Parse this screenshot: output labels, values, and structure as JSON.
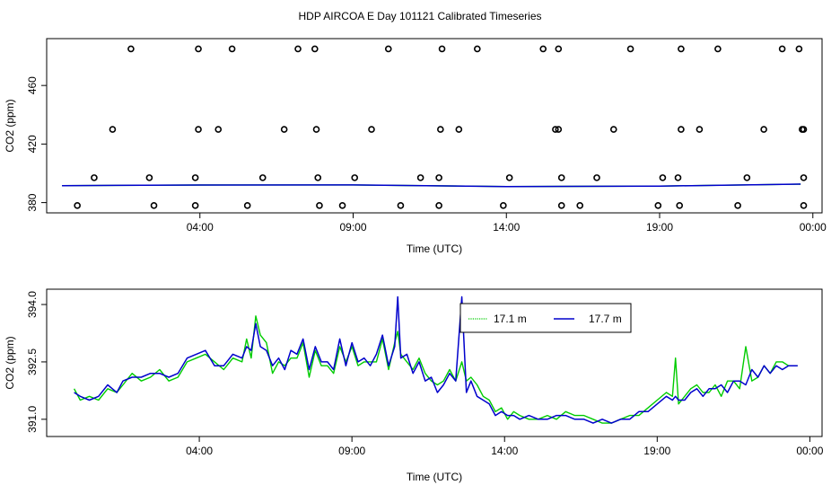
{
  "title": "HDP AIRCOA E  Day 101121  Calibrated Timeseries",
  "colors": {
    "s1": "#00cc00",
    "s2": "#0000cc",
    "axis": "#000000"
  },
  "chart_data": [
    {
      "type": "scatter+line",
      "xlabel": "Time (UTC)",
      "ylabel": "CO2 (ppm)",
      "xlim": [
        -1.0,
        24.3
      ],
      "ylim": [
        373,
        492
      ],
      "xticks": [
        {
          "v": 4,
          "label": "04:00"
        },
        {
          "v": 9,
          "label": "09:00"
        },
        {
          "v": 14,
          "label": "14:00"
        },
        {
          "v": 19,
          "label": "19:00"
        },
        {
          "v": 24,
          "label": "00:00"
        }
      ],
      "yticks": [
        {
          "v": 380,
          "label": "380"
        },
        {
          "v": 420,
          "label": "420"
        },
        {
          "v": 460,
          "label": "460"
        }
      ],
      "legend": "none",
      "calibration_points": [
        [
          1.75,
          485
        ],
        [
          3.95,
          485
        ],
        [
          5.05,
          485
        ],
        [
          7.2,
          485
        ],
        [
          7.75,
          485
        ],
        [
          10.15,
          485
        ],
        [
          11.9,
          485
        ],
        [
          13.05,
          485
        ],
        [
          15.2,
          485
        ],
        [
          15.7,
          485
        ],
        [
          18.05,
          485
        ],
        [
          19.7,
          485
        ],
        [
          20.9,
          485
        ],
        [
          23.0,
          485
        ],
        [
          23.55,
          485
        ],
        [
          1.15,
          430
        ],
        [
          3.95,
          430
        ],
        [
          4.6,
          430
        ],
        [
          6.75,
          430
        ],
        [
          7.8,
          430
        ],
        [
          9.6,
          430
        ],
        [
          11.85,
          430
        ],
        [
          12.45,
          430
        ],
        [
          15.6,
          430
        ],
        [
          15.7,
          430
        ],
        [
          17.5,
          430
        ],
        [
          19.7,
          430
        ],
        [
          20.3,
          430
        ],
        [
          22.4,
          430
        ],
        [
          23.7,
          430
        ],
        [
          23.65,
          430
        ],
        [
          0.55,
          397
        ],
        [
          2.35,
          397
        ],
        [
          3.85,
          397
        ],
        [
          6.05,
          397
        ],
        [
          7.85,
          397
        ],
        [
          9.05,
          397
        ],
        [
          11.2,
          397
        ],
        [
          11.8,
          397
        ],
        [
          14.1,
          397
        ],
        [
          15.8,
          397
        ],
        [
          16.95,
          397
        ],
        [
          19.1,
          397
        ],
        [
          19.6,
          397
        ],
        [
          21.85,
          397
        ],
        [
          23.7,
          397
        ],
        [
          0.0,
          378
        ],
        [
          2.5,
          378
        ],
        [
          3.85,
          378
        ],
        [
          5.55,
          378
        ],
        [
          7.9,
          378
        ],
        [
          8.65,
          378
        ],
        [
          10.55,
          378
        ],
        [
          11.8,
          378
        ],
        [
          13.9,
          378
        ],
        [
          15.8,
          378
        ],
        [
          16.4,
          378
        ],
        [
          18.95,
          378
        ],
        [
          19.65,
          378
        ],
        [
          21.55,
          378
        ],
        [
          23.7,
          378
        ]
      ],
      "series": [
        {
          "name": "17.1 m",
          "x": [
            -0.5,
            4,
            9,
            14,
            19,
            23.6
          ],
          "y": [
            391.6,
            392.0,
            392.1,
            391.0,
            391.3,
            392.6
          ]
        },
        {
          "name": "17.7 m",
          "x": [
            -0.5,
            4,
            9,
            14,
            19,
            23.6
          ],
          "y": [
            391.6,
            392.0,
            392.1,
            391.0,
            391.3,
            392.6
          ]
        }
      ]
    },
    {
      "type": "line",
      "xlabel": "Time (UTC)",
      "ylabel": "CO2 (ppm)",
      "xlim": [
        -1.0,
        24.4
      ],
      "ylim": [
        390.55,
        394.4
      ],
      "xticks": [
        {
          "v": 4,
          "label": "04:00"
        },
        {
          "v": 9,
          "label": "09:00"
        },
        {
          "v": 14,
          "label": "14:00"
        },
        {
          "v": 19,
          "label": "19:00"
        },
        {
          "v": 24,
          "label": "00:00"
        }
      ],
      "yticks": [
        {
          "v": 391.0,
          "label": "391.0"
        },
        {
          "v": 392.5,
          "label": "392.5"
        },
        {
          "v": 394.0,
          "label": "394.0"
        }
      ],
      "legend": "top-center",
      "series": [
        {
          "name": "17.1 m",
          "color": "#00cc00",
          "x": [
            -0.1,
            0.1,
            0.4,
            0.7,
            1.0,
            1.3,
            1.5,
            1.8,
            2.1,
            2.4,
            2.7,
            3.0,
            3.3,
            3.6,
            3.9,
            4.2,
            4.5,
            4.8,
            5.1,
            5.4,
            5.55,
            5.7,
            5.85,
            6.0,
            6.2,
            6.4,
            6.6,
            6.8,
            7.0,
            7.2,
            7.4,
            7.6,
            7.8,
            8.0,
            8.2,
            8.4,
            8.6,
            8.8,
            9.0,
            9.2,
            9.4,
            9.6,
            9.8,
            10.0,
            10.2,
            10.4,
            10.5,
            10.6,
            10.8,
            11.0,
            11.2,
            11.4,
            11.6,
            11.8,
            12.0,
            12.2,
            12.4,
            12.6,
            12.75,
            12.9,
            13.1,
            13.3,
            13.5,
            13.7,
            13.9,
            14.1,
            14.3,
            14.5,
            14.8,
            15.1,
            15.4,
            15.7,
            16.0,
            16.3,
            16.6,
            16.9,
            17.2,
            17.5,
            17.8,
            18.1,
            18.4,
            18.7,
            19.0,
            19.3,
            19.5,
            19.6,
            19.7,
            19.9,
            20.1,
            20.3,
            20.5,
            20.7,
            20.9,
            21.1,
            21.3,
            21.5,
            21.7,
            21.9,
            22.1,
            22.3,
            22.5,
            22.7,
            22.9,
            23.1,
            23.3,
            23.6
          ],
          "y": [
            391.8,
            391.5,
            391.6,
            391.5,
            391.8,
            391.7,
            391.9,
            392.2,
            392.0,
            392.1,
            392.3,
            392.0,
            392.1,
            392.5,
            392.6,
            392.7,
            392.5,
            392.3,
            392.6,
            392.5,
            393.1,
            392.6,
            393.7,
            393.2,
            393.0,
            392.2,
            392.5,
            392.4,
            392.6,
            392.6,
            393.0,
            392.1,
            392.8,
            392.4,
            392.4,
            392.2,
            392.9,
            392.5,
            392.9,
            392.4,
            392.5,
            392.5,
            392.5,
            393.1,
            392.3,
            393.0,
            393.3,
            392.7,
            392.5,
            392.3,
            392.6,
            392.2,
            392.0,
            391.9,
            392.0,
            392.3,
            392.0,
            392.5,
            392.0,
            392.1,
            391.9,
            391.6,
            391.5,
            391.2,
            391.3,
            391.0,
            391.2,
            391.1,
            391.0,
            391.0,
            391.1,
            391.0,
            391.2,
            391.1,
            391.1,
            391.0,
            390.9,
            390.9,
            391.0,
            391.1,
            391.1,
            391.3,
            391.5,
            391.7,
            391.6,
            392.6,
            391.4,
            391.6,
            391.8,
            391.9,
            391.7,
            391.7,
            391.9,
            391.6,
            392.0,
            392.0,
            391.8,
            392.9,
            392.0,
            392.1,
            392.4,
            392.2,
            392.5,
            392.5,
            392.4,
            392.4
          ]
        },
        {
          "name": "17.7 m",
          "color": "#0000cc",
          "x": [
            -0.1,
            0.1,
            0.4,
            0.7,
            1.0,
            1.3,
            1.5,
            1.8,
            2.1,
            2.4,
            2.7,
            3.0,
            3.3,
            3.6,
            3.9,
            4.2,
            4.5,
            4.8,
            5.1,
            5.4,
            5.55,
            5.7,
            5.85,
            6.0,
            6.2,
            6.4,
            6.6,
            6.8,
            7.0,
            7.2,
            7.4,
            7.6,
            7.8,
            8.0,
            8.2,
            8.4,
            8.6,
            8.8,
            9.0,
            9.2,
            9.4,
            9.6,
            9.8,
            10.0,
            10.2,
            10.4,
            10.5,
            10.6,
            10.8,
            11.0,
            11.2,
            11.4,
            11.6,
            11.8,
            12.0,
            12.2,
            12.4,
            12.6,
            12.75,
            12.9,
            13.1,
            13.3,
            13.5,
            13.7,
            13.9,
            14.1,
            14.3,
            14.5,
            14.8,
            15.1,
            15.4,
            15.7,
            16.0,
            16.3,
            16.6,
            16.9,
            17.2,
            17.5,
            17.8,
            18.1,
            18.4,
            18.7,
            19.0,
            19.3,
            19.5,
            19.6,
            19.7,
            19.9,
            20.1,
            20.3,
            20.5,
            20.7,
            20.9,
            21.1,
            21.3,
            21.5,
            21.7,
            21.9,
            22.1,
            22.3,
            22.5,
            22.7,
            22.9,
            23.1,
            23.3,
            23.6
          ],
          "y": [
            391.7,
            391.6,
            391.5,
            391.6,
            391.9,
            391.7,
            392.0,
            392.1,
            392.1,
            392.2,
            392.2,
            392.1,
            392.2,
            392.6,
            392.7,
            392.8,
            392.4,
            392.4,
            392.7,
            392.6,
            392.9,
            392.8,
            393.5,
            392.9,
            392.8,
            392.4,
            392.6,
            392.3,
            392.8,
            392.7,
            393.1,
            392.3,
            392.9,
            392.5,
            392.5,
            392.3,
            393.1,
            392.4,
            393.0,
            392.5,
            392.6,
            392.4,
            392.7,
            393.2,
            392.4,
            392.9,
            394.2,
            392.6,
            392.7,
            392.2,
            392.5,
            392.0,
            392.1,
            391.7,
            391.9,
            392.2,
            392.0,
            394.2,
            391.7,
            392.0,
            391.6,
            391.5,
            391.4,
            391.1,
            391.2,
            391.1,
            391.1,
            391.0,
            391.1,
            391.0,
            391.0,
            391.1,
            391.1,
            391.0,
            391.0,
            390.9,
            391.0,
            390.9,
            391.0,
            391.0,
            391.2,
            391.2,
            391.4,
            391.6,
            391.5,
            391.6,
            391.5,
            391.5,
            391.7,
            391.8,
            391.6,
            391.8,
            391.8,
            391.9,
            391.7,
            392.0,
            392.0,
            391.9,
            392.3,
            392.1,
            392.4,
            392.2,
            392.4,
            392.3,
            392.4,
            392.4
          ]
        }
      ]
    }
  ]
}
